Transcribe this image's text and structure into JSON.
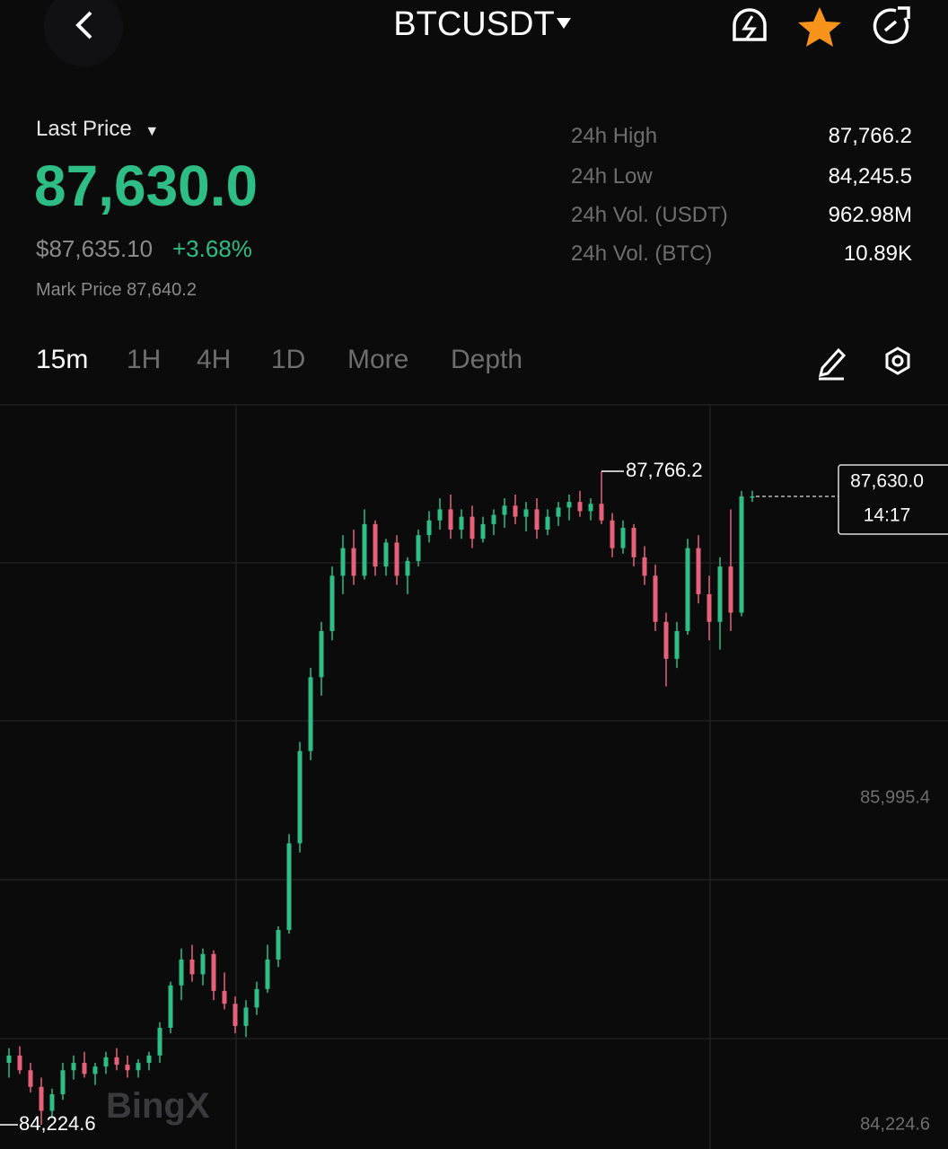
{
  "header": {
    "symbol": "BTCUSDT"
  },
  "price": {
    "label": "Last Price",
    "last": "87,630.0",
    "usd": "$87,635.10",
    "change": "+3.68%",
    "mark": "Mark Price 87,640.2"
  },
  "stats": [
    {
      "label": "24h High",
      "value": "87,766.2"
    },
    {
      "label": "24h Low",
      "value": "84,245.5"
    },
    {
      "label": "24h Vol. (USDT)",
      "value": "962.98M"
    },
    {
      "label": "24h Vol. (BTC)",
      "value": "10.89K"
    }
  ],
  "tabs": [
    "15m",
    "1H",
    "4H",
    "1D",
    "More",
    "Depth"
  ],
  "watermark": "BingX",
  "chart_data": {
    "type": "candlestick",
    "up_color": "#2ebd85",
    "down_color": "#e8617a",
    "ylim": [
      84093.2,
      88131.1
    ],
    "yticks": [
      {
        "value": 85995.4,
        "label": "85,995.4"
      },
      {
        "value": 84224.6,
        "label": "84,224.6"
      }
    ],
    "high_label": {
      "value": 87766.2,
      "label": "87,766.2"
    },
    "low_label": {
      "value": 84224.6,
      "label": "84,224.6"
    },
    "last_price": {
      "value": 87630,
      "label": "87,630.0"
    },
    "countdown": "14:17",
    "candles": [
      [
        84560,
        84640,
        84480,
        84600
      ],
      [
        84600,
        84650,
        84500,
        84520
      ],
      [
        84520,
        84560,
        84400,
        84430
      ],
      [
        84430,
        84480,
        84224.6,
        84300
      ],
      [
        84300,
        84420,
        84260,
        84390
      ],
      [
        84390,
        84560,
        84360,
        84520
      ],
      [
        84520,
        84600,
        84470,
        84560
      ],
      [
        84560,
        84620,
        84480,
        84500
      ],
      [
        84500,
        84560,
        84440,
        84540
      ],
      [
        84540,
        84620,
        84500,
        84590
      ],
      [
        84590,
        84640,
        84520,
        84550
      ],
      [
        84550,
        84600,
        84480,
        84520
      ],
      [
        84520,
        84580,
        84480,
        84560
      ],
      [
        84560,
        84620,
        84520,
        84600
      ],
      [
        84600,
        84780,
        84560,
        84750
      ],
      [
        84750,
        85000,
        84720,
        84980
      ],
      [
        84980,
        85180,
        84900,
        85120
      ],
      [
        85120,
        85200,
        85000,
        85040
      ],
      [
        85040,
        85180,
        84980,
        85150
      ],
      [
        85150,
        85170,
        84900,
        84950
      ],
      [
        84950,
        85050,
        84850,
        84880
      ],
      [
        84880,
        84920,
        84720,
        84760
      ],
      [
        84760,
        84900,
        84700,
        84860
      ],
      [
        84860,
        85000,
        84820,
        84960
      ],
      [
        84960,
        85200,
        84940,
        85120
      ],
      [
        85120,
        85300,
        85080,
        85280
      ],
      [
        85280,
        85800,
        85260,
        85750
      ],
      [
        85750,
        86300,
        85700,
        86250
      ],
      [
        86250,
        86700,
        86200,
        86650
      ],
      [
        86650,
        86950,
        86550,
        86900
      ],
      [
        86900,
        87250,
        86850,
        87200
      ],
      [
        87200,
        87420,
        87100,
        87350
      ],
      [
        87350,
        87450,
        87150,
        87200
      ],
      [
        87200,
        87560,
        87180,
        87480
      ],
      [
        87480,
        87500,
        87200,
        87250
      ],
      [
        87250,
        87400,
        87200,
        87380
      ],
      [
        87380,
        87420,
        87150,
        87200
      ],
      [
        87200,
        87300,
        87100,
        87280
      ],
      [
        87280,
        87450,
        87250,
        87420
      ],
      [
        87420,
        87550,
        87380,
        87500
      ],
      [
        87500,
        87620,
        87450,
        87560
      ],
      [
        87560,
        87640,
        87400,
        87450
      ],
      [
        87450,
        87560,
        87400,
        87520
      ],
      [
        87520,
        87580,
        87350,
        87400
      ],
      [
        87400,
        87520,
        87380,
        87480
      ],
      [
        87480,
        87560,
        87420,
        87530
      ],
      [
        87530,
        87620,
        87460,
        87580
      ],
      [
        87580,
        87640,
        87480,
        87520
      ],
      [
        87520,
        87600,
        87440,
        87560
      ],
      [
        87560,
        87620,
        87400,
        87450
      ],
      [
        87450,
        87560,
        87420,
        87520
      ],
      [
        87520,
        87600,
        87470,
        87570
      ],
      [
        87570,
        87640,
        87500,
        87600
      ],
      [
        87600,
        87660,
        87520,
        87550
      ],
      [
        87550,
        87620,
        87500,
        87590
      ],
      [
        87590,
        87766.2,
        87480,
        87500
      ],
      [
        87500,
        87540,
        87300,
        87350
      ],
      [
        87350,
        87500,
        87320,
        87460
      ],
      [
        87460,
        87480,
        87250,
        87300
      ],
      [
        87300,
        87360,
        87150,
        87200
      ],
      [
        87200,
        87260,
        86900,
        86950
      ],
      [
        86950,
        87000,
        86600,
        86750
      ],
      [
        86750,
        86950,
        86700,
        86900
      ],
      [
        86900,
        87400,
        86880,
        87350
      ],
      [
        87350,
        87420,
        87050,
        87100
      ],
      [
        87100,
        87200,
        86850,
        86950
      ],
      [
        86950,
        87300,
        86800,
        87250
      ],
      [
        87250,
        87560,
        86900,
        87000
      ],
      [
        87000,
        87660,
        86980,
        87630
      ],
      [
        87630,
        87660,
        87600,
        87630
      ]
    ]
  }
}
